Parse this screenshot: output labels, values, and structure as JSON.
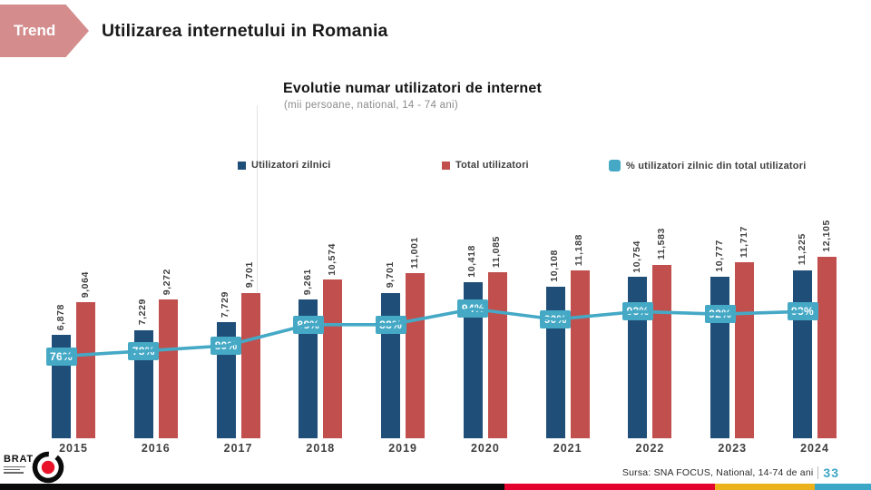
{
  "header": {
    "badge": "Trend",
    "title": "Utilizarea internetului in Romania"
  },
  "chart_data": {
    "type": "bar",
    "title": "Evolutie numar utilizatori de internet",
    "subtitle": "(mii persoane, national, 14 - 74 ani)",
    "categories": [
      "2015",
      "2016",
      "2017",
      "2018",
      "2019",
      "2020",
      "2021",
      "2022",
      "2023",
      "2024"
    ],
    "series": [
      {
        "name": "Utilizatori zilnici",
        "type": "bar",
        "color": "#1F4E79",
        "values": [
          6878,
          7229,
          7729,
          9261,
          9701,
          10418,
          10108,
          10754,
          10777,
          11225
        ]
      },
      {
        "name": "Total utilizatori",
        "type": "bar",
        "color": "#C14F4D",
        "values": [
          9064,
          9272,
          9701,
          10574,
          11001,
          11085,
          11188,
          11583,
          11717,
          12105
        ]
      },
      {
        "name": "% utilizatori zilnic din total utilizatori",
        "type": "line",
        "axis": "secondary",
        "color": "#45A9C6",
        "unit": "%",
        "values": [
          76,
          78,
          80,
          88,
          88,
          94,
          90,
          93,
          92,
          93
        ]
      }
    ],
    "ylim": [
      0,
      12105
    ],
    "grid": false,
    "legend_position": "top"
  },
  "footer": {
    "logo_text": "BRAT",
    "source": "Sursa: SNA FOCUS, National, 14-74 de ani",
    "page_number": "33"
  },
  "colors": {
    "badge_pink": "#D48C8C",
    "navy": "#1F4E79",
    "red": "#C14F4D",
    "teal": "#45A9C6",
    "strip": [
      "#0A0A0A",
      "#E4032E",
      "#ECB21C",
      "#3BA6C6"
    ],
    "logo_red": "#E8132B"
  }
}
